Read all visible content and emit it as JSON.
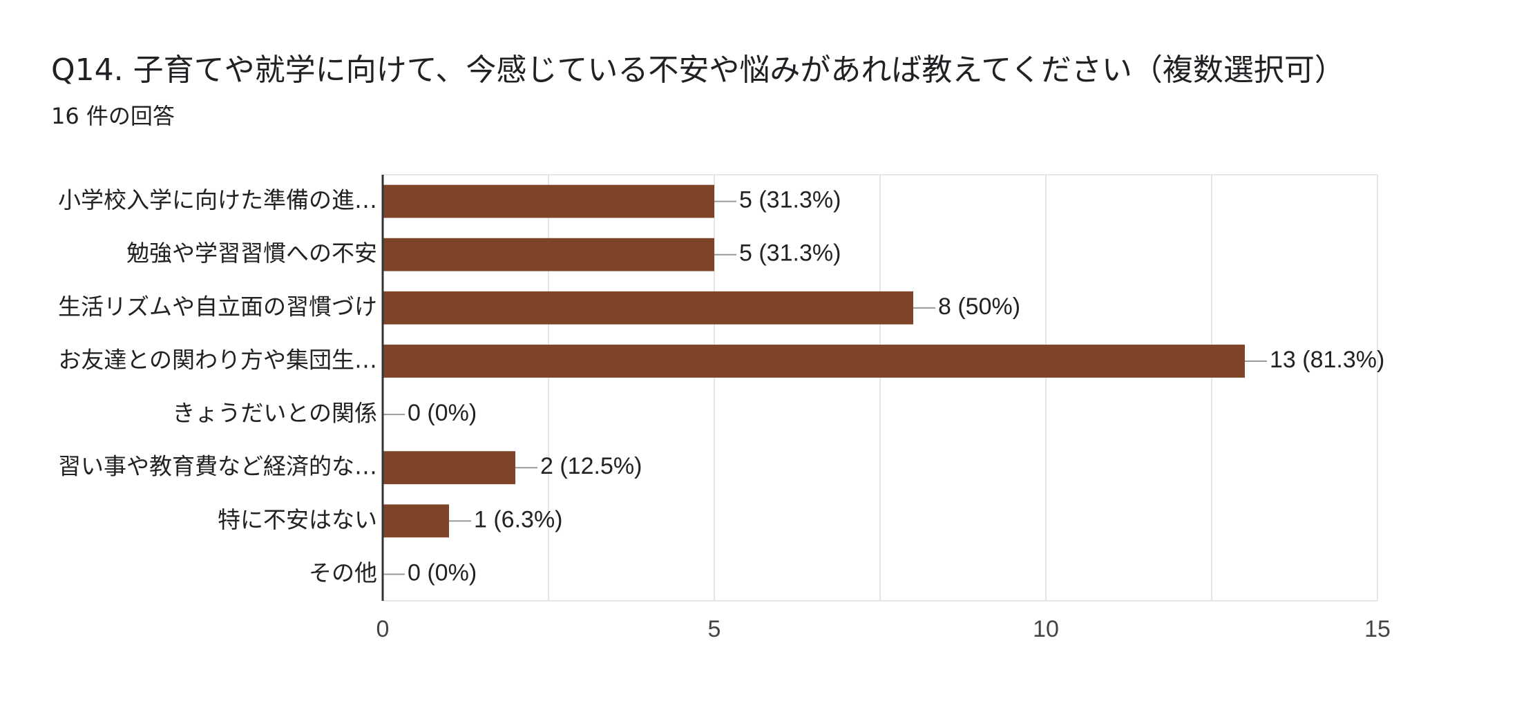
{
  "title": "Q14. 子育てや就学に向けて、今感じている不安や悩みがあれば教えてください（複数選択可）",
  "response_count": "16 件の回答",
  "colors": {
    "bar": "#7d4427",
    "grid": "#e6e6e6",
    "axis": "#333333",
    "leader": "#999999"
  },
  "chart_data": {
    "type": "bar",
    "orientation": "horizontal",
    "title": "Q14. 子育てや就学に向けて、今感じている不安や悩みがあれば教えてください（複数選択可）",
    "categories": [
      "小学校入学に向けた準備の進…",
      "勉強や学習習慣への不安",
      "生活リズムや自立面の習慣づけ",
      "お友達との関わり方や集団生…",
      "きょうだいとの関係",
      "習い事や教育費など経済的な…",
      "特に不安はない",
      "その他"
    ],
    "values": [
      5,
      5,
      8,
      13,
      0,
      2,
      1,
      0
    ],
    "data_labels": [
      "5 (31.3%)",
      "5 (31.3%)",
      "8 (50%)",
      "13 (81.3%)",
      "0 (0%)",
      "2 (12.5%)",
      "1 (6.3%)",
      "0 (0%)"
    ],
    "xlim": [
      0,
      15
    ],
    "x_ticks": [
      0,
      5,
      10,
      15
    ],
    "x_tick_labels": [
      "0",
      "5",
      "10",
      "15"
    ],
    "grid": true
  }
}
